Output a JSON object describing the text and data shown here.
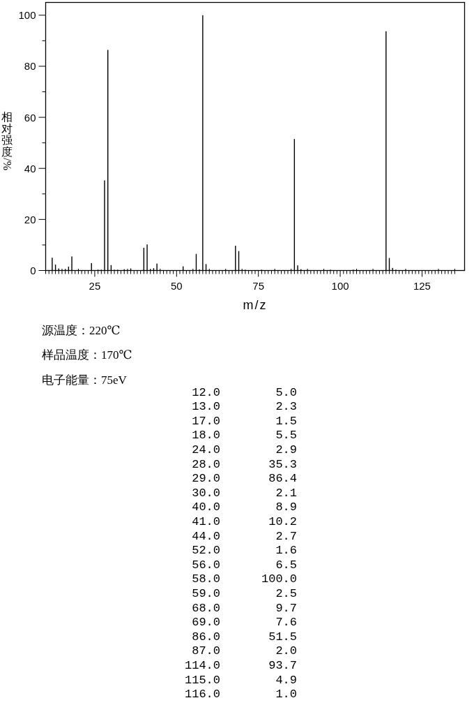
{
  "chart_data": [
    {
      "type": "bar",
      "xlabel": "m/z",
      "ylabel": "相对强度/%",
      "x": [
        12,
        13,
        14,
        16,
        17,
        18,
        24,
        26,
        27,
        28,
        29,
        30,
        31,
        32,
        34,
        36,
        40,
        41,
        42,
        43,
        44,
        52,
        56,
        57,
        58,
        59,
        68,
        69,
        71,
        76,
        86,
        87,
        88,
        97,
        104,
        114,
        115,
        116,
        117
      ],
      "values": [
        5.0,
        2.3,
        0.8,
        0.6,
        1.5,
        5.5,
        2.9,
        0.3,
        0.3,
        35.3,
        86.4,
        2.1,
        0.3,
        0.3,
        0.5,
        0.8,
        8.9,
        10.2,
        0.6,
        0.9,
        2.7,
        1.6,
        6.5,
        0.4,
        100.0,
        2.5,
        9.7,
        7.6,
        0.3,
        0.3,
        51.5,
        2.0,
        0.5,
        0.3,
        0.3,
        93.7,
        4.9,
        1.0,
        0.3
      ],
      "color": "#000000",
      "xlim": [
        10,
        138
      ],
      "ylim": [
        0,
        105
      ],
      "xticks": [
        {
          "value": 10,
          "label": null
        },
        {
          "value": 11,
          "label": null
        },
        {
          "value": 12,
          "label": null
        },
        {
          "value": 13,
          "label": null
        },
        {
          "value": 14,
          "label": null
        },
        {
          "value": 15,
          "label": null
        },
        {
          "value": 16,
          "label": null
        },
        {
          "value": 17,
          "label": null
        },
        {
          "value": 18,
          "label": null
        },
        {
          "value": 19,
          "label": null
        },
        {
          "value": 20,
          "label": null
        },
        {
          "value": 21,
          "label": null
        },
        {
          "value": 22,
          "label": null
        },
        {
          "value": 23,
          "label": null
        },
        {
          "value": 24,
          "label": null
        },
        25,
        {
          "value": 26,
          "label": null
        },
        {
          "value": 27,
          "label": null
        },
        {
          "value": 28,
          "label": null
        },
        {
          "value": 29,
          "label": null
        },
        {
          "value": 30,
          "label": null
        },
        {
          "value": 31,
          "label": null
        },
        {
          "value": 32,
          "label": null
        },
        {
          "value": 33,
          "label": null
        },
        {
          "value": 34,
          "label": null
        },
        {
          "value": 35,
          "label": null
        },
        {
          "value": 36,
          "label": null
        },
        {
          "value": 37,
          "label": null
        },
        {
          "value": 38,
          "label": null
        },
        {
          "value": 39,
          "label": null
        },
        {
          "value": 40,
          "label": null
        },
        {
          "value": 41,
          "label": null
        },
        {
          "value": 42,
          "label": null
        },
        {
          "value": 43,
          "label": null
        },
        {
          "value": 44,
          "label": null
        },
        {
          "value": 45,
          "label": null
        },
        {
          "value": 46,
          "label": null
        },
        {
          "value": 47,
          "label": null
        },
        {
          "value": 48,
          "label": null
        },
        {
          "value": 49,
          "label": null
        },
        50,
        {
          "value": 51,
          "label": null
        },
        {
          "value": 52,
          "label": null
        },
        {
          "value": 53,
          "label": null
        },
        {
          "value": 54,
          "label": null
        },
        {
          "value": 55,
          "label": null
        },
        {
          "value": 56,
          "label": null
        },
        {
          "value": 57,
          "label": null
        },
        {
          "value": 58,
          "label": null
        },
        {
          "value": 59,
          "label": null
        },
        {
          "value": 60,
          "label": null
        },
        {
          "value": 61,
          "label": null
        },
        {
          "value": 62,
          "label": null
        },
        {
          "value": 63,
          "label": null
        },
        {
          "value": 64,
          "label": null
        },
        {
          "value": 65,
          "label": null
        },
        {
          "value": 66,
          "label": null
        },
        {
          "value": 67,
          "label": null
        },
        {
          "value": 68,
          "label": null
        },
        {
          "value": 69,
          "label": null
        },
        {
          "value": 70,
          "label": null
        },
        {
          "value": 71,
          "label": null
        },
        {
          "value": 72,
          "label": null
        },
        {
          "value": 73,
          "label": null
        },
        {
          "value": 74,
          "label": null
        },
        75,
        {
          "value": 76,
          "label": null
        },
        {
          "value": 77,
          "label": null
        },
        {
          "value": 78,
          "label": null
        },
        {
          "value": 79,
          "label": null
        },
        {
          "value": 80,
          "label": null
        },
        {
          "value": 81,
          "label": null
        },
        {
          "value": 82,
          "label": null
        },
        {
          "value": 83,
          "label": null
        },
        {
          "value": 84,
          "label": null
        },
        {
          "value": 85,
          "label": null
        },
        {
          "value": 86,
          "label": null
        },
        {
          "value": 87,
          "label": null
        },
        {
          "value": 88,
          "label": null
        },
        {
          "value": 89,
          "label": null
        },
        {
          "value": 90,
          "label": null
        },
        {
          "value": 91,
          "label": null
        },
        {
          "value": 92,
          "label": null
        },
        {
          "value": 93,
          "label": null
        },
        {
          "value": 94,
          "label": null
        },
        {
          "value": 95,
          "label": null
        },
        {
          "value": 96,
          "label": null
        },
        {
          "value": 97,
          "label": null
        },
        {
          "value": 98,
          "label": null
        },
        {
          "value": 99,
          "label": null
        },
        100,
        {
          "value": 101,
          "label": null
        },
        {
          "value": 102,
          "label": null
        },
        {
          "value": 103,
          "label": null
        },
        {
          "value": 104,
          "label": null
        },
        {
          "value": 105,
          "label": null
        },
        {
          "value": 106,
          "label": null
        },
        {
          "value": 107,
          "label": null
        },
        {
          "value": 108,
          "label": null
        },
        {
          "value": 109,
          "label": null
        },
        {
          "value": 110,
          "label": null
        },
        {
          "value": 111,
          "label": null
        },
        {
          "value": 112,
          "label": null
        },
        {
          "value": 113,
          "label": null
        },
        {
          "value": 114,
          "label": null
        },
        {
          "value": 115,
          "label": null
        },
        {
          "value": 116,
          "label": null
        },
        {
          "value": 117,
          "label": null
        },
        {
          "value": 118,
          "label": null
        },
        {
          "value": 119,
          "label": null
        },
        {
          "value": 120,
          "label": null
        },
        {
          "value": 121,
          "label": null
        },
        {
          "value": 122,
          "label": null
        },
        {
          "value": 123,
          "label": null
        },
        {
          "value": 124,
          "label": null
        },
        125,
        {
          "value": 126,
          "label": null
        },
        {
          "value": 127,
          "label": null
        },
        {
          "value": 128,
          "label": null
        },
        {
          "value": 129,
          "label": null
        },
        {
          "value": 130,
          "label": null
        },
        {
          "value": 131,
          "label": null
        },
        {
          "value": 132,
          "label": null
        },
        {
          "value": 133,
          "label": null
        },
        {
          "value": 134,
          "label": null
        },
        {
          "value": 135,
          "label": null
        }
      ],
      "yticks": [
        0,
        {
          "value": 10,
          "label": null
        },
        20,
        {
          "value": 30,
          "label": null
        },
        40,
        {
          "value": 50,
          "label": null
        },
        60,
        {
          "value": 70,
          "label": null
        },
        80,
        {
          "value": 90,
          "label": null
        },
        100
      ]
    },
    {
      "type": "other",
      "annotations": [
        "源温度：220℃",
        "样品温度：170℃",
        "电子能量：75eV"
      ]
    },
    {
      "type": "other",
      "annotations": [
        "12.0",
        "5.0",
        "13.0",
        "2.3",
        "17.0",
        "1.5",
        "18.0",
        "5.5",
        "24.0",
        "2.9",
        "28.0",
        "35.3",
        "29.0",
        "86.4",
        "30.0",
        "2.1",
        "40.0",
        "8.9",
        "41.0",
        "10.2",
        "44.0",
        "2.7",
        "52.0",
        "1.6",
        "56.0",
        "6.5",
        "58.0",
        "100.0",
        "59.0",
        "2.5",
        "68.0",
        "9.7",
        "69.0",
        "7.6",
        "86.0",
        "51.5",
        "87.0",
        "2.0",
        "114.0",
        "93.7",
        "115.0",
        "4.9",
        "116.0",
        "1.0"
      ]
    }
  ]
}
